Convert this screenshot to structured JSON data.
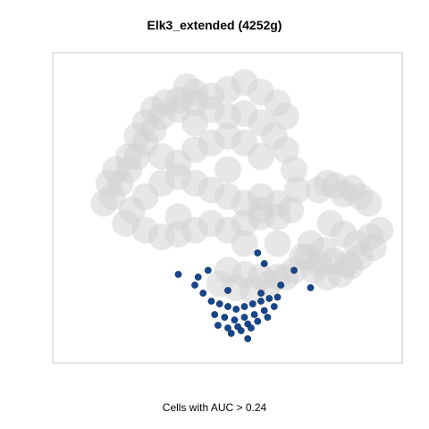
{
  "chart_data": {
    "type": "scatter",
    "title": "Elk3_extended (4252g)",
    "xlabel": "Cells with AUC > 0.24",
    "ylabel": "",
    "grid": false,
    "legend": "none",
    "colors": {
      "background_cells": "#d3d3d3",
      "highlighted_cells": "#17478a",
      "frame": "#c8c8c8"
    },
    "series": [
      {
        "role": "background",
        "x": [
          -0.25,
          -0.2,
          -0.1,
          0.0,
          0.1,
          0.2,
          0.3,
          0.35,
          -0.3,
          -0.4,
          -0.45,
          -0.5,
          -0.55,
          -0.6,
          -0.65,
          -0.7,
          -0.75,
          -0.72,
          -0.68,
          -0.6,
          -0.55,
          -0.5,
          -0.45,
          -0.38,
          -0.3,
          -0.2,
          -0.1,
          0.0,
          0.1,
          0.2,
          0.28,
          0.35,
          0.4,
          0.42,
          0.38,
          0.3,
          0.2,
          0.1,
          0.0,
          -0.1,
          -0.2,
          -0.3,
          -0.4,
          -0.5,
          -0.58,
          -0.62,
          -0.5,
          -0.4,
          -0.3,
          -0.2,
          -0.1,
          0.0,
          0.1,
          0.2,
          0.3,
          0.2,
          0.1,
          0.0,
          -0.1,
          -0.2,
          -0.3,
          -0.4,
          -0.2,
          0.0,
          0.2,
          -0.3,
          0.1,
          0.3,
          0.55,
          0.6,
          0.65,
          0.7,
          0.75,
          0.8,
          0.85,
          0.62,
          0.7,
          0.78,
          0.86,
          0.92,
          0.88,
          0.8,
          0.72,
          0.64,
          0.58,
          0.5,
          0.45,
          0.52,
          0.6,
          0.68,
          0.74,
          0.55,
          0.48,
          0.4,
          0.3,
          0.2,
          0.1,
          0.0,
          -0.05,
          0.05,
          0.15,
          0.25,
          0.35
        ],
        "y": [
          0.82,
          0.78,
          0.75,
          0.8,
          0.85,
          0.78,
          0.7,
          0.6,
          0.65,
          0.6,
          0.5,
          0.4,
          0.3,
          0.2,
          0.1,
          0.0,
          -0.05,
          0.1,
          0.2,
          0.3,
          0.45,
          0.55,
          0.65,
          0.7,
          0.72,
          0.7,
          0.65,
          0.6,
          0.62,
          0.55,
          0.45,
          0.35,
          0.2,
          0.05,
          -0.1,
          -0.15,
          -0.1,
          -0.05,
          0.0,
          0.05,
          0.1,
          0.15,
          0.1,
          0.0,
          -0.1,
          -0.2,
          -0.25,
          -0.3,
          -0.28,
          -0.25,
          -0.2,
          -0.25,
          -0.2,
          -0.15,
          -0.05,
          0.3,
          0.4,
          0.45,
          0.4,
          0.35,
          0.25,
          0.3,
          0.55,
          0.2,
          0.0,
          -0.15,
          -0.35,
          -0.35,
          0.05,
          0.1,
          0.08,
          0.02,
          0.06,
          0.0,
          -0.05,
          -0.2,
          -0.28,
          -0.35,
          -0.3,
          -0.25,
          -0.38,
          -0.45,
          -0.5,
          -0.48,
          -0.4,
          -0.35,
          -0.45,
          -0.55,
          -0.6,
          -0.58,
          -0.52,
          -0.5,
          -0.45,
          -0.55,
          -0.6,
          -0.6,
          -0.58,
          -0.55,
          -0.65,
          -0.68,
          -0.7,
          -0.65,
          -0.6
        ]
      },
      {
        "role": "highlighted",
        "x": [
          -0.1,
          -0.05,
          0.0,
          0.05,
          0.1,
          0.15,
          0.2,
          0.25,
          0.3,
          -0.08,
          -0.02,
          0.04,
          0.1,
          0.16,
          0.22,
          0.28,
          -0.06,
          0.0,
          0.06,
          0.12,
          0.18,
          0.24,
          0.02,
          0.08,
          0.14,
          -0.15,
          -0.2,
          -0.18,
          -0.12,
          0.18,
          0.22,
          0.4,
          0.5,
          -0.3,
          0.0,
          0.32,
          0.12,
          0.2
        ],
        "y": [
          -0.78,
          -0.8,
          -0.82,
          -0.84,
          -0.82,
          -0.8,
          -0.78,
          -0.76,
          -0.75,
          -0.88,
          -0.9,
          -0.92,
          -0.9,
          -0.88,
          -0.85,
          -0.82,
          -0.96,
          -0.98,
          -0.97,
          -0.95,
          -0.93,
          -0.9,
          -1.02,
          -1.0,
          -0.98,
          -0.72,
          -0.66,
          -0.6,
          -0.55,
          -0.42,
          -0.5,
          -0.55,
          -0.68,
          -0.58,
          -0.7,
          -0.66,
          -1.06,
          -0.72
        ]
      }
    ],
    "xlim": [
      -1,
      1
    ],
    "ylim": [
      -1.2,
      1
    ]
  }
}
